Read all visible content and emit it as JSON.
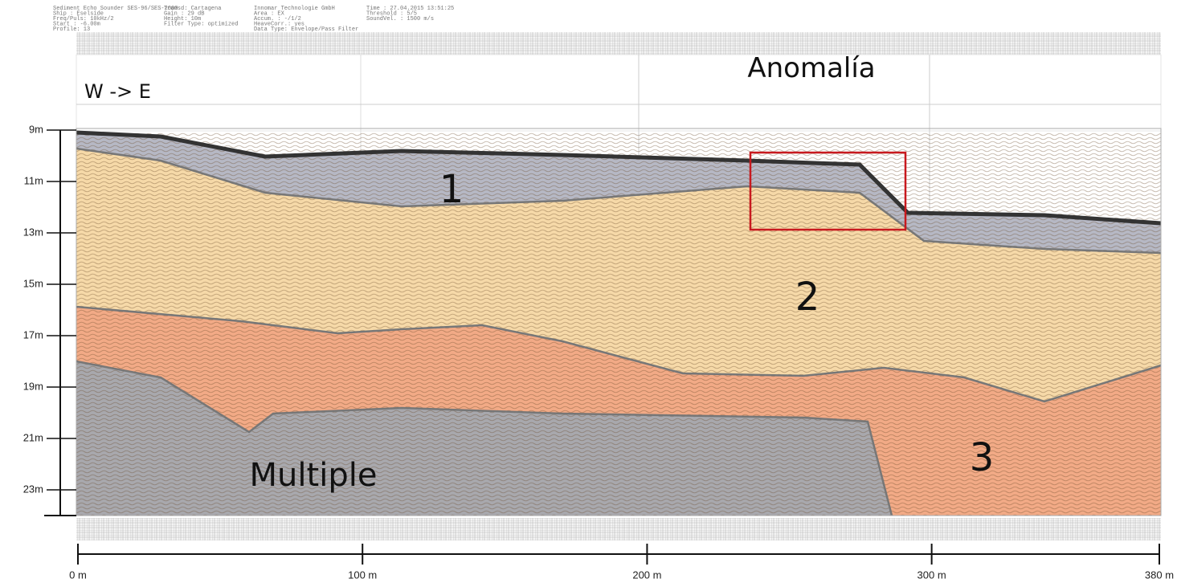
{
  "header": {
    "columns": [
      [
        "Sediment Echo Sounder SES-96/SES-2000",
        "Ship : Eselside",
        "Freq/Puls: 10kHz/2",
        "Start : -6.00m",
        "Profile: 13"
      ],
      [
        "Transd: Cartagena",
        "Gain : 29 dB",
        "Height: 10m",
        "Filter Type: optimized"
      ],
      [
        "Innomar Technologie GmbH",
        "Area : EX",
        "Accum. : -/1/2",
        "HeaveCorr.: yes",
        "Data Type: Envelope/Pass Filter"
      ],
      [
        "Time : 27.04.2015 13:51:25",
        "Threshold : 5/5",
        "SoundVel. : 1500 m/s"
      ]
    ]
  },
  "profile": {
    "direction": "W -> E",
    "anomaly_label": "Anomalía",
    "layers": [
      "1",
      "2",
      "3",
      "Multiple"
    ],
    "depth_ticks": [
      {
        "value": 9,
        "label": "9m"
      },
      {
        "value": 11,
        "label": "11m"
      },
      {
        "value": 13,
        "label": "13m"
      },
      {
        "value": 15,
        "label": "15m"
      },
      {
        "value": 17,
        "label": "17m"
      },
      {
        "value": 19,
        "label": "19m"
      },
      {
        "value": 21,
        "label": "21m"
      },
      {
        "value": 23,
        "label": "23m"
      }
    ],
    "distance_ticks": [
      {
        "value": 0,
        "label": "0 m"
      },
      {
        "value": 100,
        "label": "100 m"
      },
      {
        "value": 200,
        "label": "200 m"
      },
      {
        "value": 300,
        "label": "300 m"
      },
      {
        "value": 380,
        "label": "380 m"
      }
    ]
  }
}
